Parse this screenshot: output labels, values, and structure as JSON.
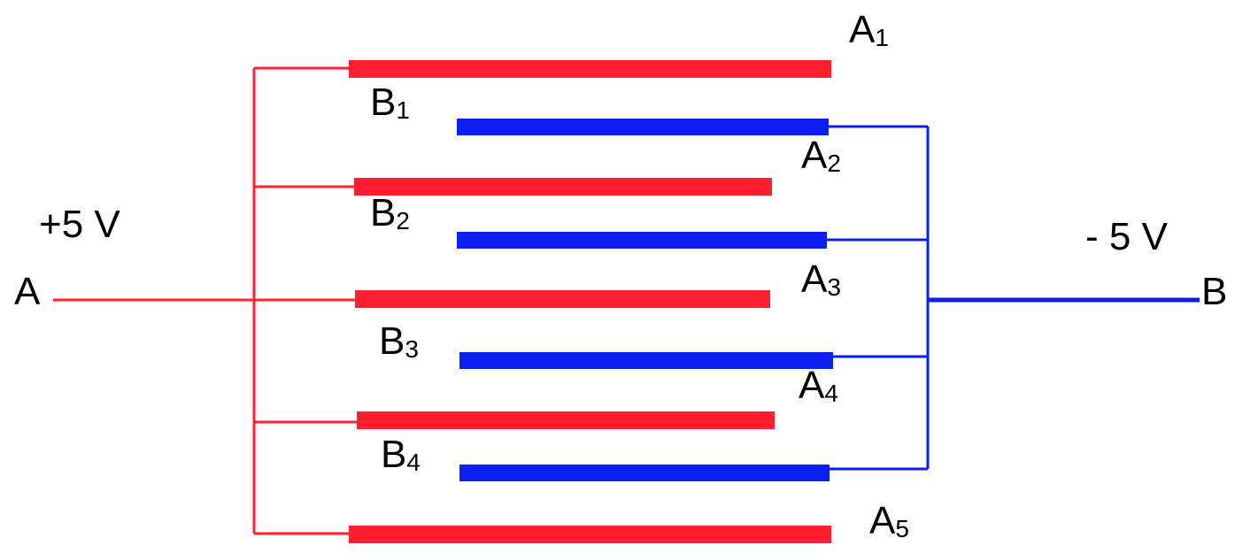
{
  "colors": {
    "positive": "#ff1f2e",
    "negative": "#0b1ff0",
    "text": "#000000",
    "background": "#ffffff"
  },
  "labels": {
    "positive_voltage": "+5 V",
    "negative_voltage": "- 5 V",
    "terminal_a": "A",
    "terminal_b": "B"
  },
  "plates": {
    "A1": {
      "letter": "A",
      "index": "1"
    },
    "A2": {
      "letter": "A",
      "index": "2"
    },
    "A3": {
      "letter": "A",
      "index": "3"
    },
    "A4": {
      "letter": "A",
      "index": "4"
    },
    "A5": {
      "letter": "A",
      "index": "5"
    },
    "B1": {
      "letter": "B",
      "index": "1"
    },
    "B2": {
      "letter": "B",
      "index": "2"
    },
    "B3": {
      "letter": "B",
      "index": "3"
    },
    "B4": {
      "letter": "B",
      "index": "4"
    }
  }
}
